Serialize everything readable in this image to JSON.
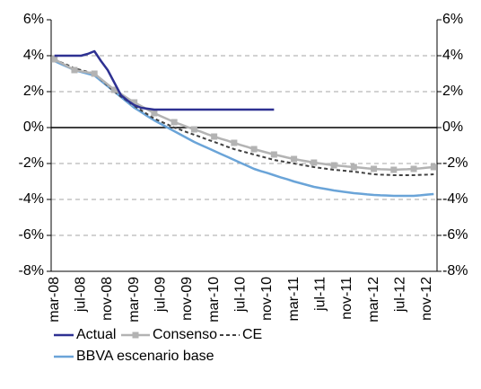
{
  "chart_data": {
    "type": "line",
    "categories": [
      "mar-08",
      null,
      null,
      null,
      "jul-08",
      null,
      null,
      null,
      "nov-08",
      null,
      null,
      null,
      "mar-09",
      null,
      null,
      null,
      "jul-09",
      null,
      null,
      null,
      "nov-09",
      null,
      null,
      null,
      "mar-10",
      null,
      null,
      null,
      "jul-10",
      null,
      null,
      null,
      "nov-10",
      null,
      null,
      null,
      "mar-11",
      null,
      null,
      null,
      "jul-11",
      null,
      null,
      null,
      "nov-11",
      null,
      null,
      null,
      "mar-12",
      null,
      null,
      null,
      "jul-12",
      null,
      null,
      null,
      "nov-12",
      null
    ],
    "series": [
      {
        "name": "Actual",
        "color": "#2e3192",
        "values": [
          4.0,
          4.0,
          4.0,
          4.0,
          4.0,
          4.1,
          4.25,
          3.7,
          3.2,
          2.5,
          1.8,
          1.5,
          1.25,
          1.1,
          1.05,
          1.0,
          1.0,
          1.0,
          1.0,
          1.0,
          1.0,
          1.0,
          1.0,
          1.0,
          1.0,
          1.0,
          1.0,
          1.0,
          1.0,
          1.0,
          1.0,
          1.0,
          1.0,
          1.0,
          null,
          null,
          null,
          null,
          null,
          null,
          null,
          null,
          null,
          null,
          null,
          null,
          null,
          null,
          null,
          null,
          null,
          null,
          null,
          null,
          null,
          null,
          null,
          null
        ]
      },
      {
        "name": "Consenso",
        "color": "#b3b3b3",
        "marker": "square",
        "values": [
          3.8,
          3.6,
          3.4,
          3.2,
          3.13,
          3.07,
          3.0,
          2.7,
          2.4,
          2.1,
          1.87,
          1.63,
          1.4,
          1.2,
          1.0,
          0.8,
          0.63,
          0.47,
          0.3,
          0.17,
          0.03,
          -0.1,
          -0.23,
          -0.37,
          -0.5,
          -0.62,
          -0.73,
          -0.85,
          -0.97,
          -1.08,
          -1.2,
          -1.3,
          -1.4,
          -1.5,
          -1.58,
          -1.67,
          -1.75,
          -1.82,
          -1.88,
          -1.95,
          -2.0,
          -2.05,
          -2.1,
          -2.13,
          -2.17,
          -2.2,
          -2.23,
          -2.27,
          -2.3,
          -2.32,
          -2.33,
          -2.35,
          -2.33,
          -2.32,
          -2.3,
          -2.27,
          -2.23,
          -2.2
        ]
      },
      {
        "name": "CE",
        "color": "#404040",
        "dashed": true,
        "values": [
          3.8,
          3.63,
          3.47,
          3.3,
          3.2,
          3.1,
          3.0,
          2.67,
          2.33,
          2.0,
          1.73,
          1.47,
          1.2,
          0.97,
          0.73,
          0.5,
          0.33,
          0.17,
          0.0,
          -0.13,
          -0.27,
          -0.4,
          -0.53,
          -0.67,
          -0.8,
          -0.93,
          -1.07,
          -1.2,
          -1.3,
          -1.4,
          -1.5,
          -1.6,
          -1.7,
          -1.8,
          -1.87,
          -1.93,
          -2.0,
          -2.07,
          -2.13,
          -2.2,
          -2.25,
          -2.3,
          -2.35,
          -2.38,
          -2.42,
          -2.45,
          -2.5,
          -2.55,
          -2.6,
          -2.62,
          -2.63,
          -2.65,
          -2.65,
          -2.65,
          -2.65,
          -2.63,
          -2.62,
          -2.6
        ]
      },
      {
        "name": "BBVA escenario base",
        "color": "#6aa4d8",
        "values": [
          3.7,
          3.53,
          3.37,
          3.2,
          3.1,
          3.0,
          2.9,
          2.6,
          2.3,
          2.0,
          1.7,
          1.4,
          1.1,
          0.87,
          0.63,
          0.4,
          0.2,
          0.0,
          -0.2,
          -0.4,
          -0.6,
          -0.8,
          -0.97,
          -1.13,
          -1.3,
          -1.47,
          -1.63,
          -1.8,
          -1.97,
          -2.13,
          -2.3,
          -2.42,
          -2.53,
          -2.65,
          -2.77,
          -2.88,
          -3.0,
          -3.1,
          -3.2,
          -3.3,
          -3.37,
          -3.43,
          -3.5,
          -3.55,
          -3.6,
          -3.65,
          -3.68,
          -3.72,
          -3.75,
          -3.77,
          -3.78,
          -3.8,
          -3.8,
          -3.8,
          -3.8,
          -3.77,
          -3.73,
          -3.7
        ]
      }
    ],
    "ylim": [
      -8,
      6
    ],
    "yticks": [
      {
        "value": -8,
        "label": "-8%"
      },
      {
        "value": -6,
        "label": "-6%"
      },
      {
        "value": -4,
        "label": "-4%"
      },
      {
        "value": -2,
        "label": "-2%"
      },
      {
        "value": 0,
        "label": "0%"
      },
      {
        "value": 2,
        "label": "2%"
      },
      {
        "value": 4,
        "label": "4%"
      },
      {
        "value": 6,
        "label": "6%"
      }
    ],
    "y2lim": [
      -8,
      6
    ],
    "y2ticks": [
      {
        "value": -8,
        "label": "-8%"
      },
      {
        "value": -6,
        "label": "-6%"
      },
      {
        "value": -4,
        "label": "-4%"
      },
      {
        "value": -2,
        "label": "-2%"
      },
      {
        "value": 0,
        "label": "0%"
      },
      {
        "value": 2,
        "label": "2%"
      },
      {
        "value": 4,
        "label": "4%"
      },
      {
        "value": 6,
        "label": "6%"
      }
    ],
    "grid": true
  }
}
